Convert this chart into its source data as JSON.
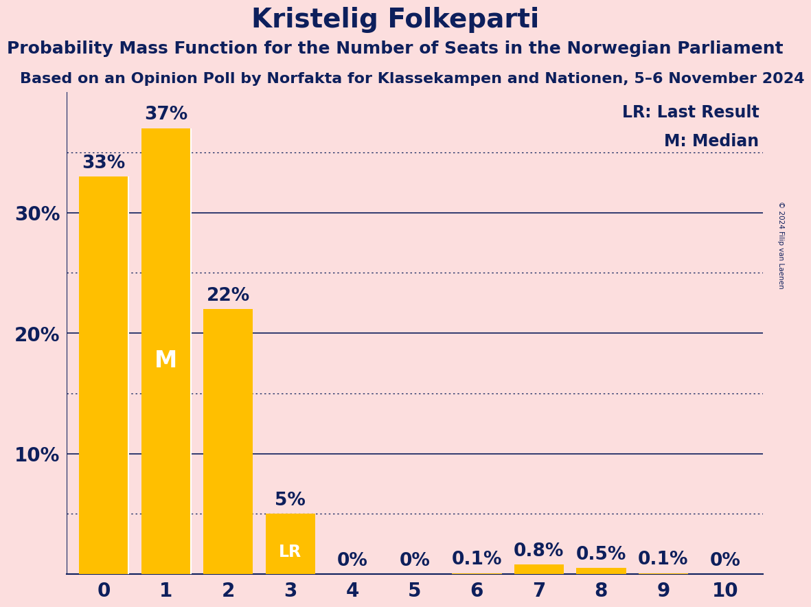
{
  "title": "Kristelig Folkeparti",
  "subtitle": "Probability Mass Function for the Number of Seats in the Norwegian Parliament",
  "source": "Based on an Opinion Poll by Norfakta for Klassekampen and Nationen, 5–6 November 2024",
  "copyright": "© 2024 Filip van Laenen",
  "categories": [
    0,
    1,
    2,
    3,
    4,
    5,
    6,
    7,
    8,
    9,
    10
  ],
  "values": [
    33,
    37,
    22,
    5,
    0,
    0,
    0.1,
    0.8,
    0.5,
    0.1,
    0
  ],
  "bar_color": "#FFBF00",
  "median_bar": 1,
  "lr_bar": 3,
  "background_color": "#FCDEDE",
  "text_color": "#0D1F5C",
  "ylabel_ticks": [
    10,
    20,
    30
  ],
  "dotted_lines": [
    5,
    15,
    25,
    35
  ],
  "solid_lines": [
    10,
    20,
    30
  ],
  "ylim": [
    0,
    40
  ],
  "title_fontsize": 28,
  "subtitle_fontsize": 18,
  "source_fontsize": 16,
  "bar_label_fontsize": 19,
  "axis_tick_fontsize": 20,
  "legend_fontsize": 17,
  "bar_width": 0.8
}
